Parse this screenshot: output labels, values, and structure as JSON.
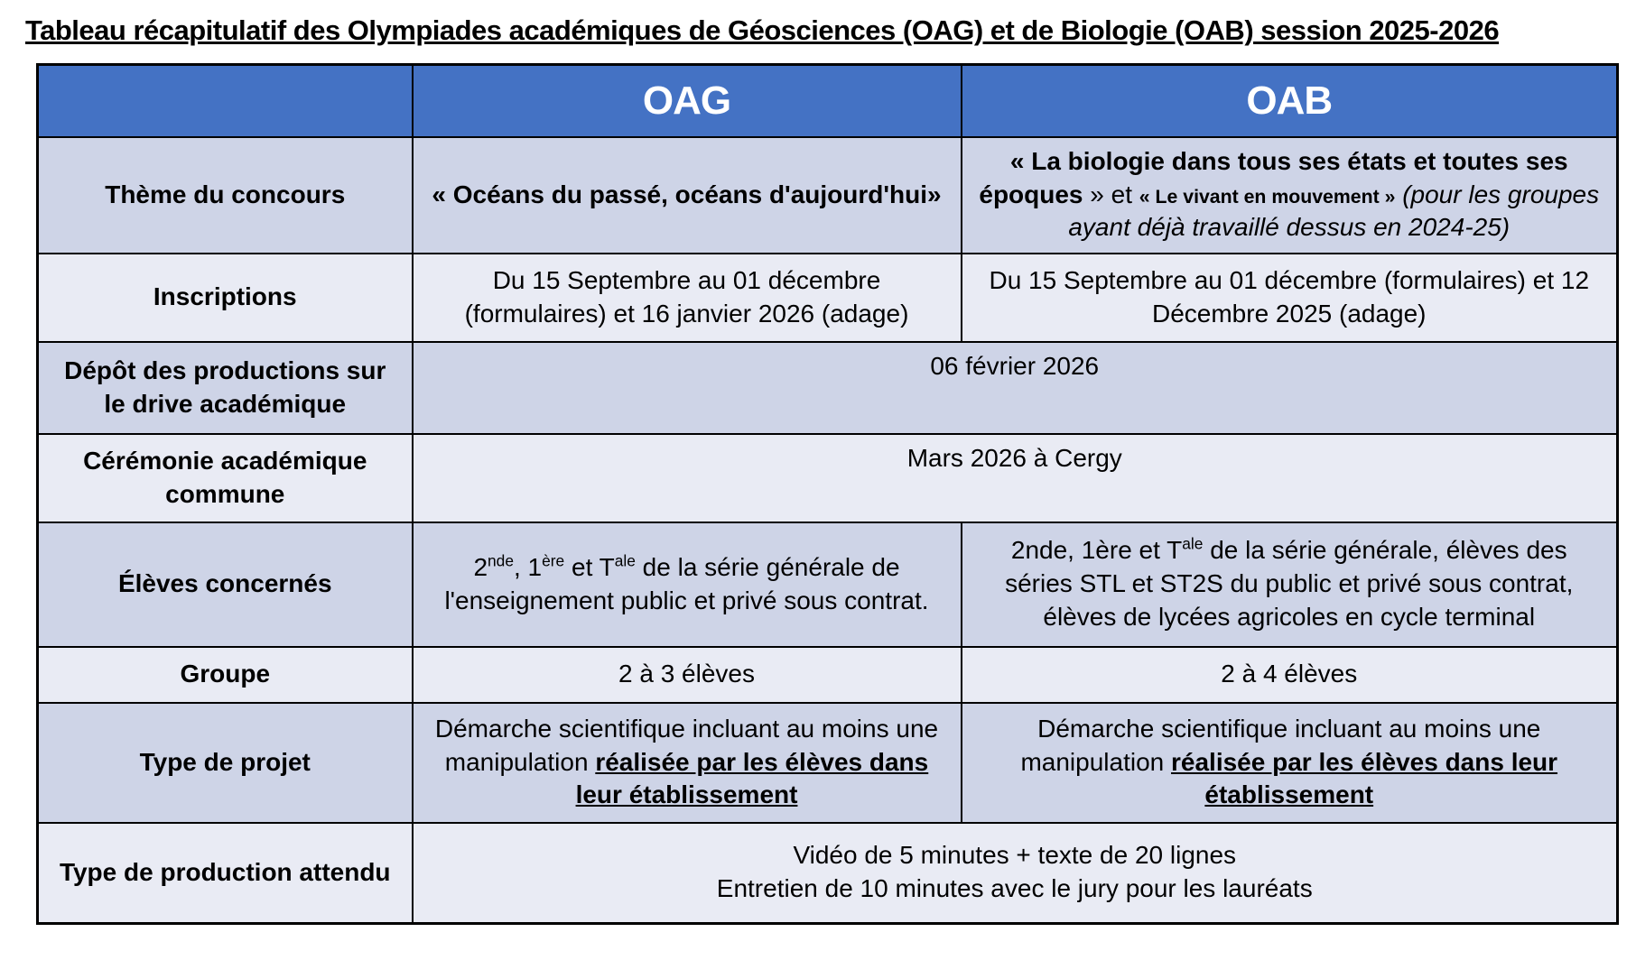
{
  "title": "Tableau récapitulatif des Olympiades académiques de Géosciences (OAG) et de Biologie (OAB) session 2025-2026",
  "colors": {
    "header_bg": "#4472C4",
    "header_text": "#FFFFFF",
    "band_dark": "#CED4E7",
    "band_light": "#E9EBF4",
    "border": "#000000"
  },
  "table": {
    "header": {
      "corner": "",
      "oag": "OAG",
      "oab": "OAB"
    },
    "rows": {
      "theme": {
        "label": "Thème du concours",
        "oag": {
          "quote_bold": "« Océans du passé, océans d'aujourd'hui»"
        },
        "oab": {
          "quote1_bold": "« La biologie dans tous ses états et toutes ses époques",
          "connector": " » et ",
          "quote2_small_bold": "« Le vivant en mouvement »",
          "parenthetical_italic": " (pour les groupes ayant déjà travaillé dessus en 2024-25)"
        }
      },
      "inscriptions": {
        "label": "Inscriptions",
        "oag": "Du 15 Septembre au 01 décembre (formulaires) et 16 janvier 2026 (adage)",
        "oab": "Du 15 Septembre au 01 décembre (formulaires) et 12 Décembre 2025 (adage)"
      },
      "depot": {
        "label": "Dépôt des productions sur le drive académique",
        "value": "06 février 2026"
      },
      "ceremonie": {
        "label": "Cérémonie académique commune",
        "value": "Mars 2026 à Cergy"
      },
      "eleves": {
        "label": "Élèves concernés",
        "oag": {
          "p0": "2",
          "s0": "nde",
          "p1": ", 1",
          "s1": "ère",
          "p2": " et T",
          "s2": "ale",
          "p3": " de la série générale de l'enseignement public et privé sous contrat."
        },
        "oab": {
          "p0": "2nde, 1ère et T",
          "s0": "ale",
          "p1": " de la série générale, élèves des séries STL et ST2S du public et privé sous contrat, élèves de lycées agricoles en cycle terminal"
        }
      },
      "groupe": {
        "label": "Groupe",
        "oag": "2 à 3 élèves",
        "oab": "2 à 4 élèves"
      },
      "projet": {
        "label": "Type de projet",
        "oag": {
          "pre": "Démarche scientifique incluant au moins une manipulation ",
          "emph": "réalisée par les élèves dans leur établissement"
        },
        "oab": {
          "pre": "Démarche scientifique incluant au moins une manipulation ",
          "emph": "réalisée par les élèves dans leur établissement"
        }
      },
      "production": {
        "label": "Type de production attendu",
        "line1": "Vidéo de 5 minutes + texte de 20 lignes",
        "line2": "Entretien de 10 minutes avec le jury pour les lauréats"
      }
    }
  }
}
